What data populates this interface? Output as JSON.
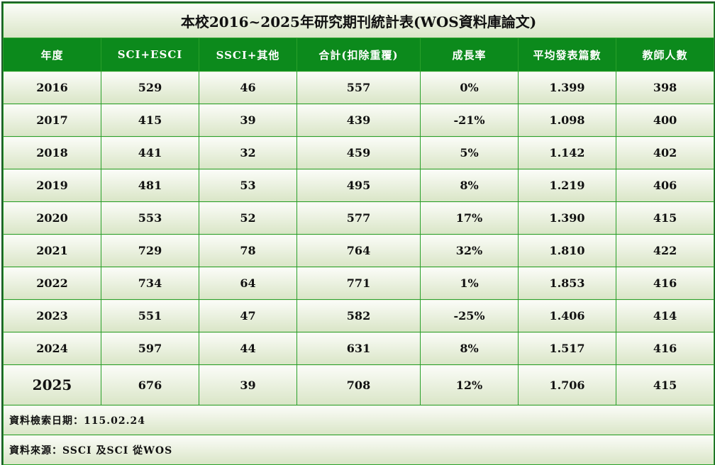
{
  "title": "本校2016~2025年研究期刊統計表(WOS資料庫論文)",
  "headers": [
    "年度",
    "SCI+ESCI",
    "SSCI+其他",
    "合計(扣除重覆)",
    "成長率",
    "平均發表篇數",
    "教師人數"
  ],
  "rows": [
    [
      "2016",
      "529",
      "46",
      "557",
      "0%",
      "1.399",
      "398"
    ],
    [
      "2017",
      "415",
      "39",
      "439",
      "-21%",
      "1.098",
      "400"
    ],
    [
      "2018",
      "441",
      "32",
      "459",
      "5%",
      "1.142",
      "402"
    ],
    [
      "2019",
      "481",
      "53",
      "495",
      "8%",
      "1.219",
      "406"
    ],
    [
      "2020",
      "553",
      "52",
      "577",
      "17%",
      "1.390",
      "415"
    ],
    [
      "2021",
      "729",
      "78",
      "764",
      "32%",
      "1.810",
      "422"
    ],
    [
      "2022",
      "734",
      "64",
      "771",
      "1%",
      "1.853",
      "416"
    ],
    [
      "2023",
      "551",
      "47",
      "582",
      "-25%",
      "1.406",
      "414"
    ],
    [
      "2024",
      "597",
      "44",
      "631",
      "8%",
      "1.517",
      "416"
    ],
    [
      "2025",
      "676",
      "39",
      "708",
      "12%",
      "1.706",
      "415"
    ]
  ],
  "footer": {
    "date": "資料檢索日期：115.02.24",
    "source": "資料來源：SSCI 及SCI 從WOS"
  },
  "colors": {
    "header_bg": "#0c8a1c",
    "border": "#2aa02a",
    "cell_gradient_end": "#d9e5c6"
  }
}
